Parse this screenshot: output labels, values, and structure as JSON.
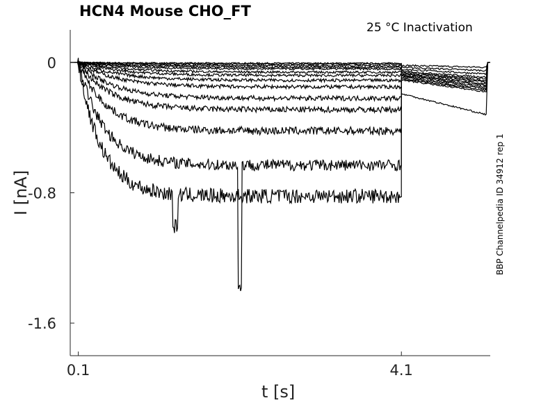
{
  "chart_data": {
    "type": "line",
    "title": "HCN4  Mouse  CHO_FT",
    "subtitle": "25 °C  Inactivation",
    "side_label": "BBP Channelpedia ID 34912 rep 1",
    "xlabel": "t [s]",
    "ylabel": "I [nA]",
    "xlim": [
      0.0,
      5.2
    ],
    "ylim": [
      -1.8,
      0.2
    ],
    "x_ticks": [
      0.1,
      4.1
    ],
    "x_tick_labels": [
      "0.1",
      "4.1"
    ],
    "y_ticks": [
      0,
      -0.8,
      -1.6
    ],
    "y_tick_labels": [
      "0",
      "-0.8",
      "-1.6"
    ],
    "grid": false,
    "sweep_description": {
      "step_start_s": 0.1,
      "step_end_s": 4.1,
      "trace_end_s": 5.15,
      "steady_state_currents_nA": [
        -0.005,
        -0.01,
        -0.02,
        -0.03,
        -0.04,
        -0.06,
        -0.08,
        -0.11,
        -0.15,
        -0.22,
        -0.29,
        -0.42,
        -0.63,
        -0.82
      ],
      "tail_currents_nA": [
        -0.03,
        -0.05,
        -0.07,
        -0.09,
        -0.1,
        -0.11,
        -0.12,
        -0.13,
        -0.14,
        -0.15,
        -0.16,
        -0.17,
        -0.18,
        -0.32
      ]
    }
  }
}
